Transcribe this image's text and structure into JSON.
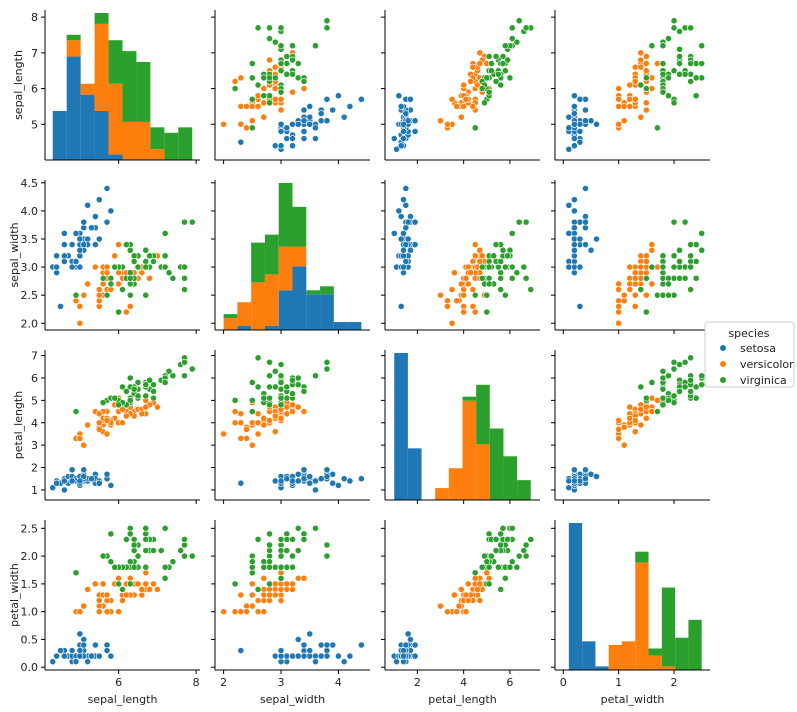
{
  "chart_data": {
    "type": "scatter",
    "variables": [
      "sepal_length",
      "sepal_width",
      "petal_length",
      "petal_width"
    ],
    "axis_labels": {
      "sepal_length": "sepal_length",
      "sepal_width": "sepal_width",
      "petal_length": "petal_length",
      "petal_width": "petal_width"
    },
    "x_ranges": {
      "sepal_length": [
        4.1,
        8.1
      ],
      "sepal_width": [
        1.85,
        4.55
      ],
      "petal_length": [
        0.6,
        7.3
      ],
      "petal_width": [
        -0.15,
        2.65
      ]
    },
    "y_ranges": {
      "sepal_length": [
        4.0,
        8.2
      ],
      "sepal_width": [
        1.88,
        4.55
      ],
      "petal_length": [
        0.55,
        7.25
      ],
      "petal_width": [
        -0.05,
        2.65
      ]
    },
    "x_ticks": {
      "sepal_length": [
        6,
        8
      ],
      "sepal_width": [
        2,
        3,
        4
      ],
      "petal_length": [
        2,
        4,
        6
      ],
      "petal_width": [
        0,
        1,
        2
      ]
    },
    "x_tick_labels": {
      "sepal_length": [
        "6",
        "8"
      ],
      "sepal_width": [
        "2",
        "3",
        "4"
      ],
      "petal_length": [
        "2",
        "4",
        "6"
      ],
      "petal_width": [
        "0",
        "1",
        "2"
      ]
    },
    "y_ticks": {
      "sepal_length": [
        5,
        6,
        7,
        8
      ],
      "sepal_width": [
        2.0,
        2.5,
        3.0,
        3.5,
        4.0,
        4.5
      ],
      "petal_length": [
        1,
        2,
        3,
        4,
        5,
        6,
        7
      ],
      "petal_width": [
        0.0,
        0.5,
        1.0,
        1.5,
        2.0,
        2.5
      ]
    },
    "y_tick_labels": {
      "sepal_length": [
        "5",
        "6",
        "7",
        "8"
      ],
      "sepal_width": [
        "2.0",
        "2.5",
        "3.0",
        "3.5",
        "4.0",
        "4.5"
      ],
      "petal_length": [
        "1",
        "2",
        "3",
        "4",
        "5",
        "6",
        "7"
      ],
      "petal_width": [
        "0.0",
        "0.5",
        "1.0",
        "1.5",
        "2.0",
        "2.5"
      ]
    },
    "legend": {
      "title": "species",
      "position": "right",
      "entries": [
        "setosa",
        "versicolor",
        "virginica"
      ]
    },
    "grid": false,
    "series": [
      {
        "name": "setosa",
        "color": "#1f77b4",
        "points": [
          [
            5.1,
            3.5,
            1.4,
            0.2
          ],
          [
            4.9,
            3.0,
            1.4,
            0.2
          ],
          [
            4.7,
            3.2,
            1.3,
            0.2
          ],
          [
            4.6,
            3.1,
            1.5,
            0.2
          ],
          [
            5.0,
            3.6,
            1.4,
            0.2
          ],
          [
            5.4,
            3.9,
            1.7,
            0.4
          ],
          [
            4.6,
            3.4,
            1.4,
            0.3
          ],
          [
            5.0,
            3.4,
            1.5,
            0.2
          ],
          [
            4.4,
            2.9,
            1.4,
            0.2
          ],
          [
            4.9,
            3.1,
            1.5,
            0.1
          ],
          [
            5.4,
            3.7,
            1.5,
            0.2
          ],
          [
            4.8,
            3.4,
            1.6,
            0.2
          ],
          [
            4.8,
            3.0,
            1.4,
            0.1
          ],
          [
            4.3,
            3.0,
            1.1,
            0.1
          ],
          [
            5.8,
            4.0,
            1.2,
            0.2
          ],
          [
            5.7,
            4.4,
            1.5,
            0.4
          ],
          [
            5.4,
            3.9,
            1.3,
            0.4
          ],
          [
            5.1,
            3.5,
            1.4,
            0.3
          ],
          [
            5.7,
            3.8,
            1.7,
            0.3
          ],
          [
            5.1,
            3.8,
            1.5,
            0.3
          ],
          [
            5.4,
            3.4,
            1.7,
            0.2
          ],
          [
            5.1,
            3.7,
            1.5,
            0.4
          ],
          [
            4.6,
            3.6,
            1.0,
            0.2
          ],
          [
            5.1,
            3.3,
            1.7,
            0.5
          ],
          [
            4.8,
            3.4,
            1.9,
            0.2
          ],
          [
            5.0,
            3.0,
            1.6,
            0.2
          ],
          [
            5.0,
            3.4,
            1.6,
            0.4
          ],
          [
            5.2,
            3.5,
            1.5,
            0.2
          ],
          [
            5.2,
            3.4,
            1.4,
            0.2
          ],
          [
            4.7,
            3.2,
            1.6,
            0.2
          ],
          [
            4.8,
            3.1,
            1.6,
            0.2
          ],
          [
            5.4,
            3.4,
            1.5,
            0.4
          ],
          [
            5.2,
            4.1,
            1.5,
            0.1
          ],
          [
            5.5,
            4.2,
            1.4,
            0.2
          ],
          [
            4.9,
            3.1,
            1.5,
            0.2
          ],
          [
            5.0,
            3.2,
            1.2,
            0.2
          ],
          [
            5.5,
            3.5,
            1.3,
            0.2
          ],
          [
            4.9,
            3.6,
            1.4,
            0.1
          ],
          [
            4.4,
            3.0,
            1.3,
            0.2
          ],
          [
            5.1,
            3.4,
            1.5,
            0.2
          ],
          [
            5.0,
            3.5,
            1.3,
            0.3
          ],
          [
            4.5,
            2.3,
            1.3,
            0.3
          ],
          [
            4.4,
            3.2,
            1.3,
            0.2
          ],
          [
            5.0,
            3.5,
            1.6,
            0.6
          ],
          [
            5.1,
            3.8,
            1.9,
            0.4
          ],
          [
            4.8,
            3.0,
            1.4,
            0.3
          ],
          [
            5.1,
            3.8,
            1.6,
            0.2
          ],
          [
            4.6,
            3.2,
            1.4,
            0.2
          ],
          [
            5.3,
            3.7,
            1.5,
            0.2
          ],
          [
            5.0,
            3.3,
            1.4,
            0.2
          ]
        ]
      },
      {
        "name": "versicolor",
        "color": "#ff7f0e",
        "points": [
          [
            7.0,
            3.2,
            4.7,
            1.4
          ],
          [
            6.4,
            3.2,
            4.5,
            1.5
          ],
          [
            6.9,
            3.1,
            4.9,
            1.5
          ],
          [
            5.5,
            2.3,
            4.0,
            1.3
          ],
          [
            6.5,
            2.8,
            4.6,
            1.5
          ],
          [
            5.7,
            2.8,
            4.5,
            1.3
          ],
          [
            6.3,
            3.3,
            4.7,
            1.6
          ],
          [
            4.9,
            2.4,
            3.3,
            1.0
          ],
          [
            6.6,
            2.9,
            4.6,
            1.3
          ],
          [
            5.2,
            2.7,
            3.9,
            1.4
          ],
          [
            5.0,
            2.0,
            3.5,
            1.0
          ],
          [
            5.9,
            3.0,
            4.2,
            1.5
          ],
          [
            6.0,
            2.2,
            4.0,
            1.0
          ],
          [
            6.1,
            2.9,
            4.7,
            1.4
          ],
          [
            5.6,
            2.9,
            3.6,
            1.3
          ],
          [
            6.7,
            3.1,
            4.4,
            1.4
          ],
          [
            5.6,
            3.0,
            4.5,
            1.5
          ],
          [
            5.8,
            2.7,
            4.1,
            1.0
          ],
          [
            6.2,
            2.2,
            4.5,
            1.5
          ],
          [
            5.6,
            2.5,
            3.9,
            1.1
          ],
          [
            5.9,
            3.2,
            4.8,
            1.8
          ],
          [
            6.1,
            2.8,
            4.0,
            1.3
          ],
          [
            6.3,
            2.5,
            4.9,
            1.5
          ],
          [
            6.1,
            2.8,
            4.7,
            1.2
          ],
          [
            6.4,
            2.9,
            4.3,
            1.3
          ],
          [
            6.6,
            3.0,
            4.4,
            1.4
          ],
          [
            6.8,
            2.8,
            4.8,
            1.4
          ],
          [
            6.7,
            3.0,
            5.0,
            1.7
          ],
          [
            6.0,
            2.9,
            4.5,
            1.5
          ],
          [
            5.7,
            2.6,
            3.5,
            1.0
          ],
          [
            5.5,
            2.4,
            3.8,
            1.1
          ],
          [
            5.5,
            2.4,
            3.7,
            1.0
          ],
          [
            5.8,
            2.7,
            3.9,
            1.2
          ],
          [
            6.0,
            2.7,
            5.1,
            1.6
          ],
          [
            5.4,
            3.0,
            4.5,
            1.5
          ],
          [
            6.0,
            3.4,
            4.5,
            1.6
          ],
          [
            6.7,
            3.1,
            4.7,
            1.5
          ],
          [
            6.3,
            2.3,
            4.4,
            1.3
          ],
          [
            5.6,
            3.0,
            4.1,
            1.3
          ],
          [
            5.5,
            2.5,
            4.0,
            1.3
          ],
          [
            5.5,
            2.6,
            4.4,
            1.2
          ],
          [
            6.1,
            3.0,
            4.6,
            1.4
          ],
          [
            5.8,
            2.6,
            4.0,
            1.2
          ],
          [
            5.0,
            2.3,
            3.3,
            1.0
          ],
          [
            5.6,
            2.7,
            4.2,
            1.3
          ],
          [
            5.7,
            3.0,
            4.2,
            1.2
          ],
          [
            5.7,
            2.9,
            4.2,
            1.3
          ],
          [
            6.2,
            2.9,
            4.3,
            1.3
          ],
          [
            5.1,
            2.5,
            3.0,
            1.1
          ],
          [
            5.7,
            2.8,
            4.1,
            1.3
          ]
        ]
      },
      {
        "name": "virginica",
        "color": "#2ca02c",
        "points": [
          [
            6.3,
            3.3,
            6.0,
            2.5
          ],
          [
            5.8,
            2.7,
            5.1,
            1.9
          ],
          [
            7.1,
            3.0,
            5.9,
            2.1
          ],
          [
            6.3,
            2.9,
            5.6,
            1.8
          ],
          [
            6.5,
            3.0,
            5.8,
            2.2
          ],
          [
            7.6,
            3.0,
            6.6,
            2.1
          ],
          [
            4.9,
            2.5,
            4.5,
            1.7
          ],
          [
            7.3,
            2.9,
            6.3,
            1.8
          ],
          [
            6.7,
            2.5,
            5.8,
            1.8
          ],
          [
            7.2,
            3.6,
            6.1,
            2.5
          ],
          [
            6.5,
            3.2,
            5.1,
            2.0
          ],
          [
            6.4,
            2.7,
            5.3,
            1.9
          ],
          [
            6.8,
            3.0,
            5.5,
            2.1
          ],
          [
            5.7,
            2.5,
            5.0,
            2.0
          ],
          [
            5.8,
            2.8,
            5.1,
            2.4
          ],
          [
            6.4,
            3.2,
            5.3,
            2.3
          ],
          [
            6.5,
            3.0,
            5.5,
            1.8
          ],
          [
            7.7,
            3.8,
            6.7,
            2.2
          ],
          [
            7.7,
            2.6,
            6.9,
            2.3
          ],
          [
            6.0,
            2.2,
            5.0,
            1.5
          ],
          [
            6.9,
            3.2,
            5.7,
            2.3
          ],
          [
            5.6,
            2.8,
            4.9,
            2.0
          ],
          [
            7.7,
            2.8,
            6.7,
            2.0
          ],
          [
            6.3,
            2.7,
            4.9,
            1.8
          ],
          [
            6.7,
            3.3,
            5.7,
            2.1
          ],
          [
            7.2,
            3.2,
            6.0,
            1.8
          ],
          [
            6.2,
            2.8,
            4.8,
            1.8
          ],
          [
            6.1,
            3.0,
            4.9,
            1.8
          ],
          [
            6.4,
            2.8,
            5.6,
            2.1
          ],
          [
            7.2,
            3.0,
            5.8,
            1.6
          ],
          [
            7.4,
            2.8,
            6.1,
            1.9
          ],
          [
            7.9,
            3.8,
            6.4,
            2.0
          ],
          [
            6.4,
            2.8,
            5.6,
            2.2
          ],
          [
            6.3,
            2.8,
            5.1,
            1.5
          ],
          [
            6.1,
            2.6,
            5.6,
            1.4
          ],
          [
            7.7,
            3.0,
            6.1,
            2.3
          ],
          [
            6.3,
            3.4,
            5.6,
            2.4
          ],
          [
            6.4,
            3.1,
            5.5,
            1.8
          ],
          [
            6.0,
            3.0,
            4.8,
            1.8
          ],
          [
            6.9,
            3.1,
            5.4,
            2.1
          ],
          [
            6.7,
            3.1,
            5.6,
            2.4
          ],
          [
            6.9,
            3.1,
            5.1,
            2.3
          ],
          [
            5.8,
            2.7,
            5.1,
            1.9
          ],
          [
            6.8,
            3.2,
            5.9,
            2.3
          ],
          [
            6.7,
            3.3,
            5.7,
            2.5
          ],
          [
            6.7,
            3.0,
            5.2,
            2.3
          ],
          [
            6.3,
            2.5,
            5.0,
            1.9
          ],
          [
            6.5,
            3.0,
            5.2,
            2.0
          ],
          [
            6.2,
            3.4,
            5.4,
            2.3
          ],
          [
            5.9,
            3.0,
            5.1,
            1.8
          ]
        ]
      }
    ]
  }
}
